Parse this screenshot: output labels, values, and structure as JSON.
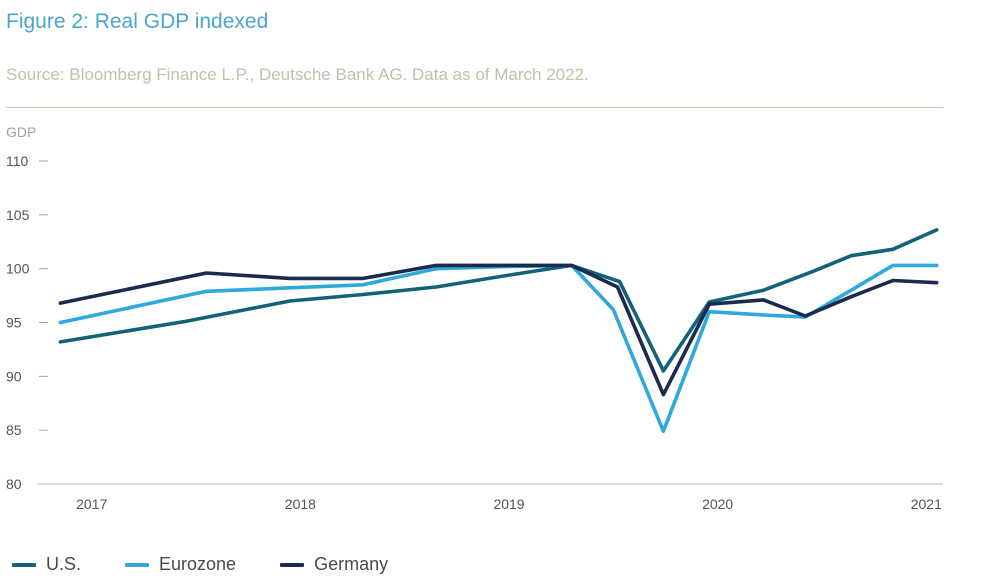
{
  "header": {
    "title": "Figure 2: Real GDP indexed",
    "source": "Source: Bloomberg Finance L.P., Deutsche Bank AG. Data as of March 2022."
  },
  "chart_data": {
    "type": "line",
    "ylabel": "GDP",
    "ylim": [
      80,
      110
    ],
    "yticks": [
      110,
      105,
      100,
      95,
      90,
      85,
      80
    ],
    "xlim": [
      2016.8,
      2021.08
    ],
    "xticks": [
      {
        "label": "2017",
        "value": 2017.0
      },
      {
        "label": "2018",
        "value": 2018.0
      },
      {
        "label": "2019",
        "value": 2019.0
      },
      {
        "label": "2020",
        "value": 2020.0
      },
      {
        "label": "2021",
        "value": 2021.0
      }
    ],
    "series": [
      {
        "name": "U.S.",
        "color": "#13627a",
        "points": [
          [
            2016.85,
            93.2
          ],
          [
            2017.45,
            95.1
          ],
          [
            2017.95,
            97.0
          ],
          [
            2018.3,
            97.6
          ],
          [
            2018.65,
            98.3
          ],
          [
            2019.0,
            99.4
          ],
          [
            2019.3,
            100.3
          ],
          [
            2019.53,
            98.8
          ],
          [
            2019.74,
            90.5
          ],
          [
            2019.96,
            96.9
          ],
          [
            2020.22,
            98.0
          ],
          [
            2020.45,
            99.7
          ],
          [
            2020.64,
            101.2
          ],
          [
            2020.84,
            101.8
          ],
          [
            2021.05,
            103.6
          ]
        ]
      },
      {
        "name": "Eurozone",
        "color": "#2fa9dc",
        "points": [
          [
            2016.85,
            95.0
          ],
          [
            2017.55,
            97.9
          ],
          [
            2018.3,
            98.5
          ],
          [
            2018.65,
            100.0
          ],
          [
            2019.0,
            100.2
          ],
          [
            2019.3,
            100.3
          ],
          [
            2019.5,
            96.2
          ],
          [
            2019.74,
            84.9
          ],
          [
            2019.96,
            96.0
          ],
          [
            2020.22,
            95.7
          ],
          [
            2020.42,
            95.5
          ],
          [
            2020.64,
            98.0
          ],
          [
            2020.84,
            100.3
          ],
          [
            2021.05,
            100.3
          ]
        ]
      },
      {
        "name": "Germany",
        "color": "#1b2a4e",
        "points": [
          [
            2016.85,
            96.8
          ],
          [
            2017.55,
            99.6
          ],
          [
            2017.95,
            99.1
          ],
          [
            2018.3,
            99.1
          ],
          [
            2018.65,
            100.3
          ],
          [
            2019.0,
            100.3
          ],
          [
            2019.3,
            100.3
          ],
          [
            2019.52,
            98.3
          ],
          [
            2019.74,
            88.3
          ],
          [
            2019.96,
            96.7
          ],
          [
            2020.22,
            97.1
          ],
          [
            2020.42,
            95.6
          ],
          [
            2020.64,
            97.4
          ],
          [
            2020.84,
            98.9
          ],
          [
            2021.05,
            98.7
          ]
        ]
      }
    ]
  }
}
